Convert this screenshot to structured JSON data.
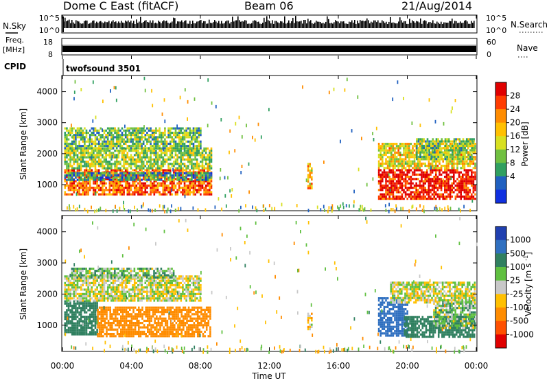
{
  "header": {
    "station": "Dome C East (fitACF)",
    "beam": "Beam 06",
    "date": "21/Aug/2014"
  },
  "top_panels": {
    "nsky_label": "N.Sky",
    "nsky_ticks": [
      "10^5",
      "10^0"
    ],
    "nsearch_label": "N.Search",
    "nsearch_ticks": [
      "10^5",
      "10^0"
    ],
    "freq_label_line1": "Freq.",
    "freq_label_line2": "[MHz]",
    "freq_ticks": [
      "18",
      "8"
    ],
    "nave_label": "Nave",
    "nave_ticks": [
      "60",
      "0"
    ],
    "cpid_label": "CPID",
    "cpid_value": "twofsound 3501"
  },
  "chart_data": [
    {
      "type": "heatmap",
      "name": "power",
      "ylabel": "Slant Range [km]",
      "yticks": [
        1000,
        2000,
        3000,
        4000
      ],
      "ylim": [
        180,
        4500
      ],
      "xlim_hours": [
        0,
        24
      ],
      "colorbar_label": "Power [dB]",
      "colorbar_ticks": [
        "28",
        "24",
        "20",
        "16",
        "12",
        "8",
        "4"
      ],
      "colorbar_colors": [
        "#e00000",
        "#ff3c00",
        "#ff8c00",
        "#ffc000",
        "#d8e020",
        "#70c040",
        "#30a060",
        "#2060c0",
        "#1030e0"
      ],
      "colorbar_range": [
        0,
        32
      ],
      "regions": [
        {
          "t0": 0.1,
          "t1": 8.6,
          "r0": 650,
          "r1": 1500,
          "value": 25
        },
        {
          "t0": 0.1,
          "t1": 8.6,
          "r0": 1500,
          "r1": 2200,
          "value": 14
        },
        {
          "t0": 0.1,
          "t1": 8.0,
          "r0": 2200,
          "r1": 2850,
          "value": 12
        },
        {
          "t0": 0.1,
          "t1": 8.6,
          "r0": 1150,
          "r1": 1400,
          "value": 8
        },
        {
          "t0": 18.3,
          "t1": 23.9,
          "r0": 560,
          "r1": 1500,
          "value": 30
        },
        {
          "t0": 18.3,
          "t1": 23.9,
          "r0": 1500,
          "r1": 2350,
          "value": 18
        },
        {
          "t0": 20.5,
          "t1": 23.9,
          "r0": 1800,
          "r1": 2500,
          "value": 13
        },
        {
          "t0": 14.2,
          "t1": 14.5,
          "r0": 900,
          "r1": 1700,
          "value": 20
        }
      ]
    },
    {
      "type": "heatmap",
      "name": "velocity",
      "ylabel": "Slant Range [km]",
      "yticks": [
        1000,
        2000,
        3000,
        4000
      ],
      "ylim": [
        180,
        4500
      ],
      "xlim_hours": [
        0,
        24
      ],
      "xticks": [
        "00:00",
        "04:00",
        "08:00",
        "12:00",
        "16:00",
        "20:00",
        "00:00"
      ],
      "xlabel": "Time UT",
      "colorbar_label": "Velocity [m s^-1]",
      "colorbar_ticks": [
        "1000",
        "500",
        "100",
        "25",
        "-25",
        "-100",
        "-500",
        "-1000"
      ],
      "colorbar_colors": [
        "#2040b0",
        "#3070c0",
        "#308060",
        "#60c040",
        "#c8c8c8",
        "#ffc000",
        "#ff8c00",
        "#ff5000",
        "#e00000"
      ],
      "regions": [
        {
          "t0": 0.1,
          "t1": 2.0,
          "r0": 700,
          "r1": 1800,
          "value": 300
        },
        {
          "t0": 2.0,
          "t1": 8.6,
          "r0": 650,
          "r1": 1600,
          "value": -300
        },
        {
          "t0": 0.1,
          "t1": 8.0,
          "r0": 1800,
          "r1": 2600,
          "value": 0
        },
        {
          "t0": 0.5,
          "t1": 6.5,
          "r0": 2500,
          "r1": 2850,
          "value": 60
        },
        {
          "t0": 18.3,
          "t1": 20.0,
          "r0": 700,
          "r1": 1900,
          "value": 900
        },
        {
          "t0": 19.8,
          "t1": 23.9,
          "r0": 620,
          "r1": 1300,
          "value": 300
        },
        {
          "t0": 21.5,
          "t1": 23.9,
          "r0": 900,
          "r1": 1800,
          "value": 60
        },
        {
          "t0": 19.0,
          "t1": 23.9,
          "r0": 1700,
          "r1": 2400,
          "value": 0
        },
        {
          "t0": 14.2,
          "t1": 14.5,
          "r0": 900,
          "r1": 1400,
          "value": -60
        }
      ]
    }
  ]
}
